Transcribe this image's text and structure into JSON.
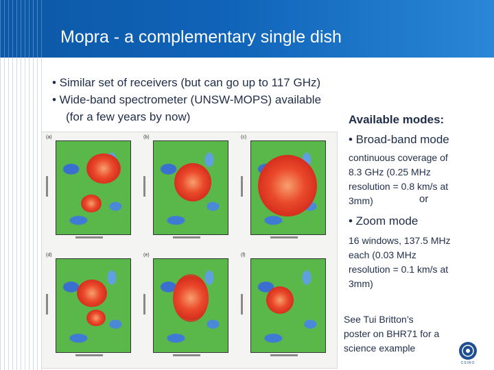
{
  "slide": {
    "title": "Mopra - a complementary single dish",
    "bullets": [
      "• Similar set of receivers (but can go up to 117 GHz)",
      "• Wide-band spectrometer (UNSW-MOPS) available",
      "(for a few years by now)"
    ],
    "figure": {
      "panel_tags": [
        "(a)",
        "(b)",
        "(c)",
        "(d)",
        "(e)",
        "(f)"
      ]
    },
    "modes": {
      "heading": "Available modes:",
      "broadband_label": "• Broad-band mode",
      "broadband_desc_lines": [
        "continuous coverage of",
        "8.3 GHz (0.25 MHz",
        "resolution = 0.8 km/s at",
        "3mm)"
      ],
      "or_text": "or",
      "zoom_label": "• Zoom mode",
      "zoom_desc_lines": [
        "16 windows, 137.5 MHz",
        "each (0.03 MHz",
        "resolution = 0.1 km/s at",
        "3mm)"
      ]
    },
    "reference_lines": [
      "See Tui Britton’s",
      "poster on BHR71 for a",
      "science example"
    ],
    "logo_text": "CSIRO",
    "colors": {
      "header": "#0f63b8",
      "text": "#1f2d4a"
    }
  }
}
